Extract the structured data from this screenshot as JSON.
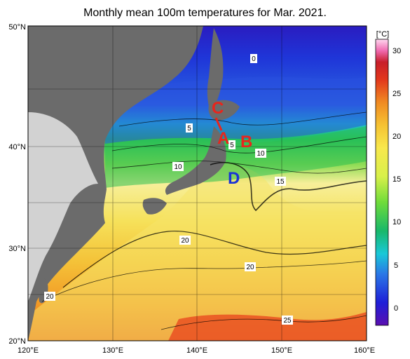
{
  "title": "Monthly mean 100m temperatures for Mar. 2021.",
  "lat_labels": [
    "50°N",
    "40°N",
    "30°N",
    "20°N"
  ],
  "lon_labels": [
    "120°E",
    "130°E",
    "140°E",
    "150°E",
    "160°E"
  ],
  "colorbar": {
    "unit": "[°C]",
    "ticks": [
      "30",
      "25",
      "20",
      "15",
      "10",
      "5",
      "0"
    ]
  },
  "contour_labels": [
    "0",
    "5",
    "5",
    "10",
    "10",
    "15",
    "20",
    "20",
    "20",
    "25"
  ],
  "markers": {
    "A": {
      "label": "A",
      "color": "#e8251c"
    },
    "B": {
      "label": "B",
      "color": "#e8251c"
    },
    "C": {
      "label": "C",
      "color": "#e8251c"
    },
    "D": {
      "label": "D",
      "color": "#1a33d6"
    }
  },
  "colors": {
    "land_dark": "#6b6b6b",
    "land_light": "#d2d2d2",
    "cold": "#1f2fc8",
    "cool": "#2aa9d9",
    "mid": "#27c258",
    "warm": "#f6e64a",
    "hot": "#f3a22b",
    "hottest": "#e84a1d"
  }
}
